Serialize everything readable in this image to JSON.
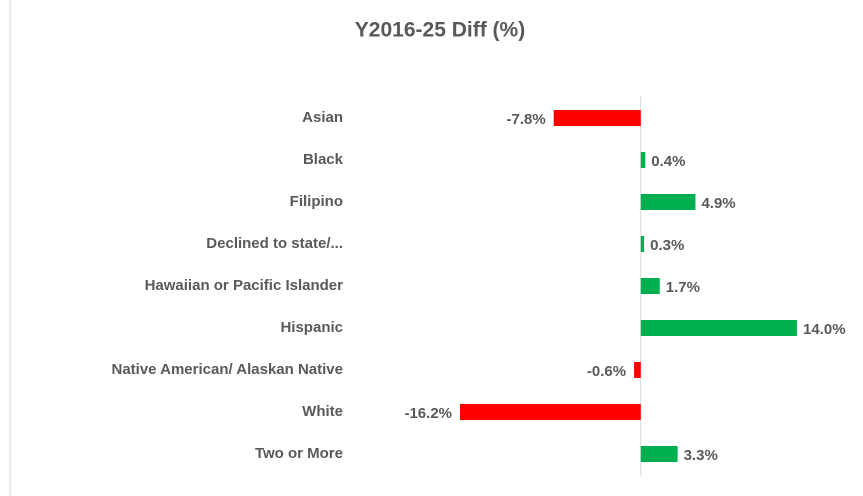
{
  "chart_data": {
    "type": "bar",
    "orientation": "horizontal",
    "title": "Y2016-25 Diff (%)",
    "categories": [
      "Asian",
      "Black",
      "Filipino",
      "Declined to state/...",
      "Hawaiian or Pacific Islander",
      "Hispanic",
      "Native American/ Alaskan Native",
      "White",
      "Two or More"
    ],
    "values": [
      -7.8,
      0.4,
      4.9,
      0.3,
      1.7,
      14.0,
      -0.6,
      -16.2,
      3.3
    ],
    "value_labels": [
      "-7.8%",
      "0.4%",
      "4.9%",
      "0.3%",
      "1.7%",
      "14.0%",
      "-0.6%",
      "-16.2%",
      "3.3%"
    ],
    "positive_color": "#00b050",
    "negative_color": "#ff0000"
  }
}
